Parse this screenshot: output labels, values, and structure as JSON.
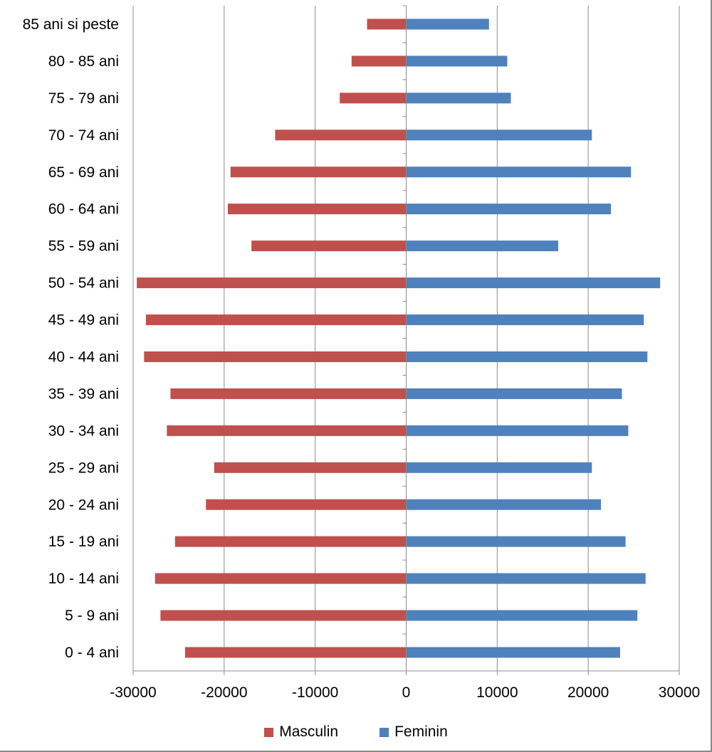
{
  "chart_data": {
    "type": "bar",
    "orientation": "horizontal",
    "categories": [
      "0 - 4 ani",
      "5 - 9 ani",
      "10 - 14 ani",
      "15 - 19 ani",
      "20 - 24 ani",
      "25 - 29 ani",
      "30 - 34 ani",
      "35 - 39 ani",
      "40 - 44 ani",
      "45 - 49 ani",
      "50 - 54 ani",
      "55 - 59 ani",
      "60 - 64 ani",
      "65 - 69 ani",
      "70 - 74 ani",
      "75 - 79 ani",
      "80 - 85 ani",
      "85 ani si peste"
    ],
    "series": [
      {
        "name": "Masculin",
        "color": "#c0504d",
        "values": [
          -24300,
          -27000,
          -27600,
          -25400,
          -22000,
          -21100,
          -26300,
          -25900,
          -28800,
          -28600,
          -29600,
          -17000,
          -19600,
          -19300,
          -14400,
          -7300,
          -6000,
          -4300
        ]
      },
      {
        "name": "Feminin",
        "color": "#4f81bd",
        "values": [
          23500,
          25400,
          26300,
          24100,
          21400,
          20400,
          24400,
          23700,
          26500,
          26100,
          27900,
          16700,
          22500,
          24700,
          20400,
          11500,
          11100,
          9100
        ]
      }
    ],
    "xlim": [
      -30000,
      30000
    ],
    "xticks": [
      "-30000",
      "-20000",
      "-10000",
      "0",
      "10000",
      "20000",
      "30000"
    ],
    "xtick_values": [
      -30000,
      -20000,
      -10000,
      0,
      10000,
      20000,
      30000
    ],
    "grid": "vertical",
    "legend_position": "bottom",
    "title": "",
    "xlabel": "",
    "ylabel": ""
  }
}
